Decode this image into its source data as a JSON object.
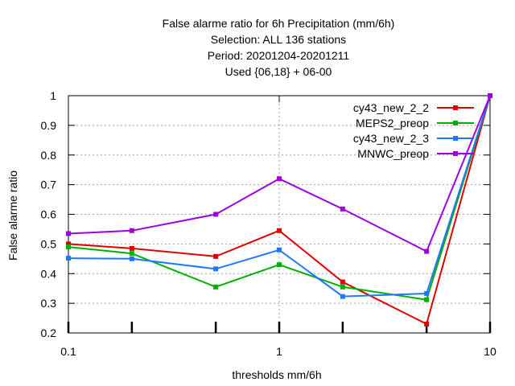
{
  "chart_data": {
    "type": "line",
    "title_lines": [
      "False alarme ratio  for 6h Precipitation (mm/6h)",
      "Selection: ALL    136 stations",
      "Period: 20201204-20201211",
      "Used {06,18} + 06-00"
    ],
    "xlabel": "thresholds mm/6h",
    "ylabel": "False alarme ratio",
    "x_scale": "log",
    "xlim": [
      0.1,
      10
    ],
    "ylim": [
      0.2,
      1
    ],
    "x_ticks": [
      0.1,
      1,
      10
    ],
    "x_tick_labels": [
      "0.1",
      "1",
      "10"
    ],
    "x_minor_ticks": [
      0.2,
      0.5,
      2,
      5
    ],
    "y_ticks": [
      0.2,
      0.3,
      0.4,
      0.5,
      0.6,
      0.7,
      0.8,
      0.9,
      1
    ],
    "y_tick_labels": [
      "0.2",
      "0.3",
      "0.4",
      "0.5",
      "0.6",
      "0.7",
      "0.8",
      "0.9",
      "1"
    ],
    "grid": true,
    "legend_position": "top-right",
    "x": [
      0.1,
      0.2,
      0.5,
      1,
      2,
      5,
      10
    ],
    "series": [
      {
        "name": "cy43_new_2_2",
        "color": "#e00000",
        "values": [
          0.5,
          0.485,
          0.458,
          0.545,
          0.372,
          0.23,
          1.0
        ]
      },
      {
        "name": "MEPS2_preop",
        "color": "#00b000",
        "values": [
          0.49,
          0.468,
          0.355,
          0.43,
          0.355,
          0.312,
          1.0
        ]
      },
      {
        "name": "cy43_new_2_3",
        "color": "#1e78ff",
        "values": [
          0.452,
          0.45,
          0.416,
          0.48,
          0.323,
          0.333,
          1.0
        ]
      },
      {
        "name": "MNWC_preop",
        "color": "#a000e0",
        "values": [
          0.535,
          0.545,
          0.6,
          0.72,
          0.618,
          0.475,
          1.0
        ]
      }
    ]
  }
}
